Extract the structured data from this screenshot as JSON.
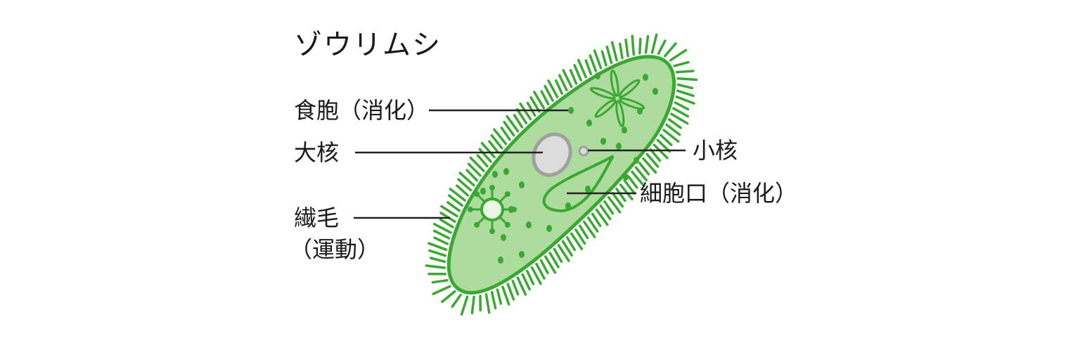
{
  "title": "ゾウリムシ",
  "labels": {
    "food_vacuole": "食胞（消化）",
    "macronucleus": "大核",
    "cilia_line1": "繊毛",
    "cilia_line2": "（運動）",
    "micronucleus": "小核",
    "oral_groove": "細胞口（消化）"
  },
  "colors": {
    "cilia": "#3aa832",
    "outline": "#3aa832",
    "body_fill": "#aedc9f",
    "dots": "#3aa832",
    "macronucleus_fill": "#dcdcdc",
    "macronucleus_stroke": "#a0a0a0",
    "leader_line": "#222222",
    "text": "#1a1a1a"
  }
}
